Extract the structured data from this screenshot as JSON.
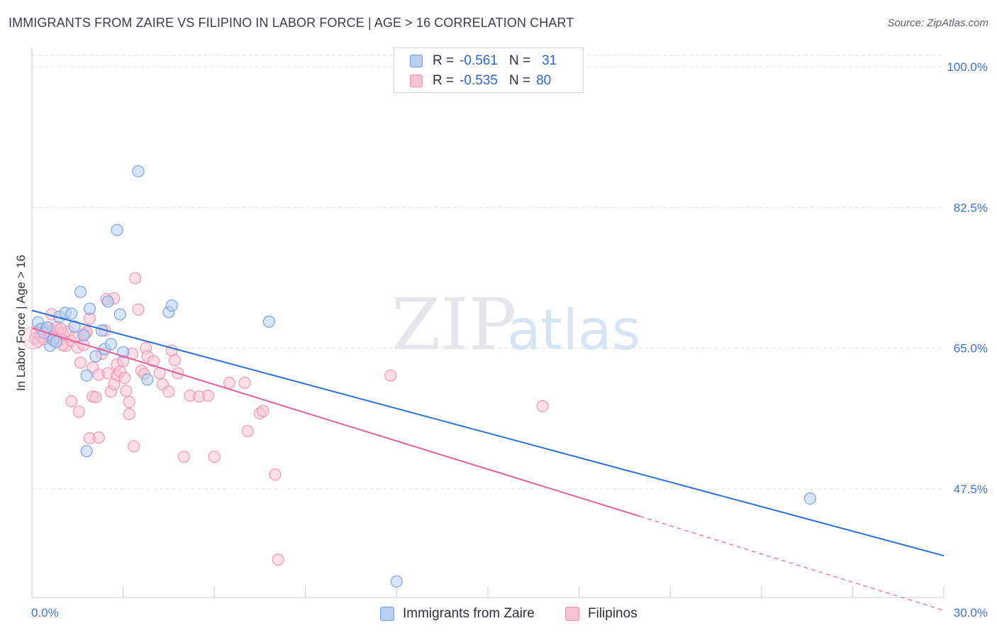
{
  "title": "IMMIGRANTS FROM ZAIRE VS FILIPINO IN LABOR FORCE | AGE > 16 CORRELATION CHART",
  "source": "Source: ZipAtlas.com",
  "watermark": {
    "zip": "ZIP",
    "atlas": "atlas"
  },
  "legend_box": [
    {
      "r_label": "R =",
      "r_value": "-0.561",
      "n_label": "N =",
      "n_value": "31"
    },
    {
      "r_label": "R =",
      "r_value": "-0.535",
      "n_label": "N =",
      "n_value": "80"
    }
  ],
  "colors": {
    "zaire_fill": "#b8d0f2",
    "zaire_stroke": "#6f9be0",
    "zaire_line": "#2f6fd1",
    "filipino_fill": "#f8c3d3",
    "filipino_stroke": "#ec8fae",
    "filipino_line": "#e0609a",
    "grid": "#dfe2e7",
    "tick_label": "#3f72c9"
  },
  "chart_data": {
    "type": "scatter",
    "title": "IMMIGRANTS FROM ZAIRE VS FILIPINO IN LABOR FORCE | AGE > 16 CORRELATION CHART",
    "xlabel": "",
    "ylabel": "In Labor Force | Age > 16",
    "xlim": [
      0,
      30
    ],
    "ylim": [
      34,
      101.5
    ],
    "x_tick_labels": [
      "0.0%",
      "30.0%"
    ],
    "y_ticks": [
      47.5,
      65.0,
      82.5,
      100.0
    ],
    "y_tick_labels": [
      "47.5%",
      "65.0%",
      "82.5%",
      "100.0%"
    ],
    "grid": true,
    "legend_placement": "top-center",
    "series": [
      {
        "name": "Immigrants from Zaire",
        "r": -0.561,
        "n": 31,
        "trend": {
          "x": [
            0,
            30
          ],
          "y": [
            69.7,
            39.2
          ]
        },
        "points": [
          [
            0.2,
            68.2
          ],
          [
            0.3,
            67.4
          ],
          [
            0.4,
            66.9
          ],
          [
            0.5,
            67.6
          ],
          [
            0.6,
            65.3
          ],
          [
            0.7,
            66.0
          ],
          [
            0.9,
            68.9
          ],
          [
            1.1,
            69.4
          ],
          [
            1.3,
            69.3
          ],
          [
            1.4,
            67.7
          ],
          [
            1.6,
            72.0
          ],
          [
            1.7,
            66.6
          ],
          [
            1.8,
            61.6
          ],
          [
            1.8,
            52.2
          ],
          [
            1.9,
            69.9
          ],
          [
            2.1,
            64.0
          ],
          [
            2.3,
            67.2
          ],
          [
            2.4,
            64.9
          ],
          [
            2.5,
            70.8
          ],
          [
            2.6,
            65.5
          ],
          [
            2.8,
            79.7
          ],
          [
            2.9,
            69.2
          ],
          [
            3.0,
            64.5
          ],
          [
            3.5,
            87.0
          ],
          [
            3.8,
            61.1
          ],
          [
            4.5,
            69.5
          ],
          [
            4.6,
            70.3
          ],
          [
            7.8,
            68.3
          ],
          [
            25.6,
            46.3
          ],
          [
            12.0,
            36.0
          ],
          [
            0.8,
            65.8
          ]
        ]
      },
      {
        "name": "Filipinos",
        "r": -0.535,
        "n": 80,
        "trend": {
          "x": [
            0,
            20
          ],
          "y": [
            67.5,
            44.1
          ]
        },
        "trend_extension": {
          "x": [
            20,
            30
          ],
          "y": [
            44.1,
            32.4
          ]
        },
        "points": [
          [
            0.1,
            66.2
          ],
          [
            0.15,
            67.0
          ],
          [
            0.2,
            65.8
          ],
          [
            0.3,
            66.5
          ],
          [
            0.35,
            67.4
          ],
          [
            0.4,
            66.1
          ],
          [
            0.45,
            67.3
          ],
          [
            0.5,
            66.8
          ],
          [
            0.55,
            67.5
          ],
          [
            0.6,
            66.4
          ],
          [
            0.65,
            69.2
          ],
          [
            0.7,
            67.2
          ],
          [
            0.75,
            66.3
          ],
          [
            0.8,
            67.6
          ],
          [
            0.9,
            66.0
          ],
          [
            1.0,
            66.9
          ],
          [
            1.1,
            65.3
          ],
          [
            1.2,
            67.1
          ],
          [
            1.3,
            65.9
          ],
          [
            1.4,
            66.4
          ],
          [
            1.5,
            65.1
          ],
          [
            1.55,
            57.1
          ],
          [
            1.6,
            63.2
          ],
          [
            1.7,
            65.4
          ],
          [
            1.75,
            66.8
          ],
          [
            1.8,
            67.0
          ],
          [
            1.9,
            68.7
          ],
          [
            1.9,
            53.8
          ],
          [
            2.0,
            62.6
          ],
          [
            2.0,
            59.0
          ],
          [
            2.1,
            58.9
          ],
          [
            2.2,
            61.7
          ],
          [
            2.2,
            53.9
          ],
          [
            2.3,
            64.3
          ],
          [
            2.4,
            67.2
          ],
          [
            2.45,
            71.1
          ],
          [
            2.5,
            61.9
          ],
          [
            2.6,
            59.6
          ],
          [
            2.7,
            71.2
          ],
          [
            2.8,
            63.0
          ],
          [
            2.8,
            61.6
          ],
          [
            2.9,
            62.1
          ],
          [
            3.0,
            63.4
          ],
          [
            3.05,
            61.3
          ],
          [
            3.1,
            59.7
          ],
          [
            3.2,
            58.3
          ],
          [
            3.2,
            56.8
          ],
          [
            3.3,
            64.3
          ],
          [
            3.35,
            52.8
          ],
          [
            3.4,
            73.7
          ],
          [
            3.5,
            69.8
          ],
          [
            3.6,
            62.2
          ],
          [
            3.7,
            61.8
          ],
          [
            3.75,
            65.0
          ],
          [
            3.8,
            64.0
          ],
          [
            4.0,
            63.4
          ],
          [
            4.2,
            61.9
          ],
          [
            4.3,
            60.5
          ],
          [
            4.5,
            59.6
          ],
          [
            4.6,
            64.7
          ],
          [
            4.7,
            63.5
          ],
          [
            4.8,
            61.9
          ],
          [
            5.0,
            51.5
          ],
          [
            5.2,
            59.1
          ],
          [
            5.5,
            59.0
          ],
          [
            5.8,
            59.1
          ],
          [
            6.0,
            51.5
          ],
          [
            6.5,
            60.7
          ],
          [
            7.0,
            60.7
          ],
          [
            7.1,
            54.7
          ],
          [
            7.5,
            56.9
          ],
          [
            7.6,
            57.2
          ],
          [
            8.0,
            49.3
          ],
          [
            8.1,
            38.7
          ],
          [
            11.8,
            61.6
          ],
          [
            16.8,
            57.8
          ],
          [
            1.3,
            58.4
          ],
          [
            2.7,
            60.5
          ],
          [
            1.0,
            65.4
          ],
          [
            0.95,
            67.4
          ]
        ]
      }
    ]
  },
  "bottom_legend": [
    "Immigrants from Zaire",
    "Filipinos"
  ]
}
